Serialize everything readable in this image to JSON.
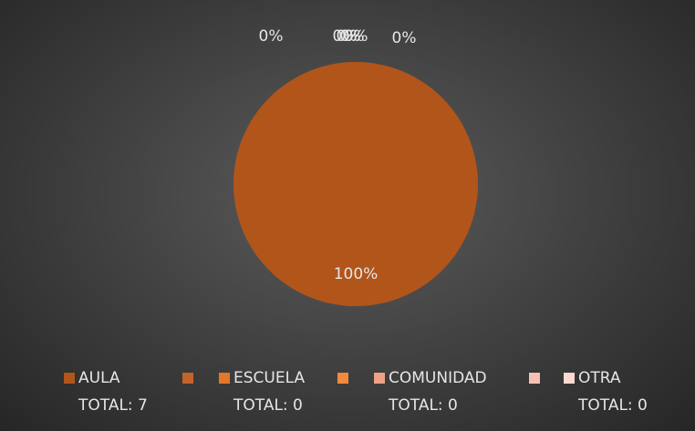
{
  "chart_data": {
    "type": "pie",
    "categories": [
      "AULA TOTAL: 7",
      null,
      "ESCUELA TOTAL: 0",
      null,
      "COMUNIDAD TOTAL: 0",
      null,
      "OTRA TOTAL: 0"
    ],
    "values": [
      100,
      0,
      0,
      0,
      0,
      0,
      0
    ],
    "value_labels": [
      "100%",
      "0%",
      "0%",
      "0%",
      "0%",
      "0%",
      "0%"
    ],
    "colors": [
      "#b2551b",
      "#c4642a",
      "#e2772b",
      "#f08a3c",
      "#eea186",
      "#f6c1b2",
      "#fbd9d0"
    ]
  }
}
